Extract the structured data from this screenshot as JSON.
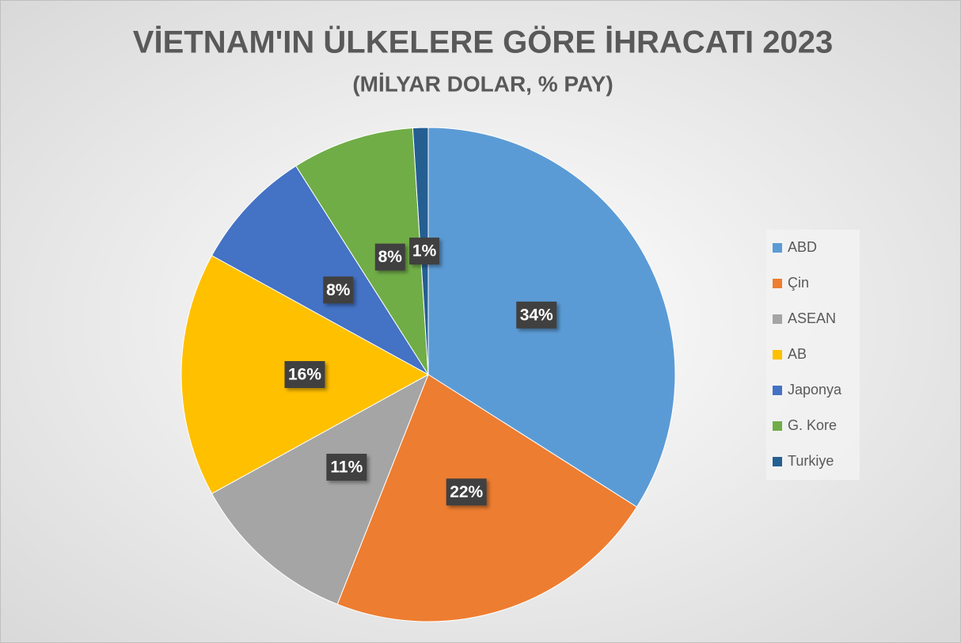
{
  "chart_data": {
    "type": "pie",
    "title": "VİETNAM'IN ÜLKELERE GÖRE İHRACATI 2023",
    "subtitle": "(MİLYAR DOLAR, % PAY)",
    "categories": [
      "ABD",
      "Çin",
      "ASEAN",
      "AB",
      "Japonya",
      "G. Kore",
      "Turkiye"
    ],
    "values": [
      34,
      22,
      11,
      16,
      8,
      8,
      1
    ],
    "value_labels": [
      "34%",
      "22%",
      "11%",
      "16%",
      "8%",
      "8%",
      "1%"
    ],
    "colors": [
      "#5b9bd5",
      "#ed7d31",
      "#a5a5a5",
      "#ffc000",
      "#4472c4",
      "#70ad47",
      "#255e91"
    ],
    "legend": "right"
  }
}
